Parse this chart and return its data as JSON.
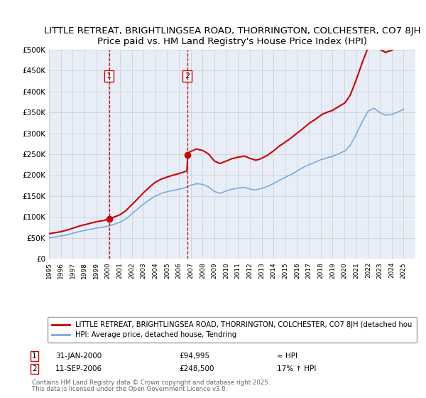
{
  "title_line1": "LITTLE RETREAT, BRIGHTLINGSEA ROAD, THORRINGTON, COLCHESTER, CO7 8JH",
  "title_line2": "Price paid vs. HM Land Registry's House Price Index (HPI)",
  "ylim": [
    0,
    500000
  ],
  "yticks": [
    0,
    50000,
    100000,
    150000,
    200000,
    250000,
    300000,
    350000,
    400000,
    450000,
    500000
  ],
  "ytick_labels": [
    "£0",
    "£50K",
    "£100K",
    "£150K",
    "£200K",
    "£250K",
    "£300K",
    "£350K",
    "£400K",
    "£450K",
    "£500K"
  ],
  "xlim_start": 1995.0,
  "xlim_end": 2026.0,
  "background_color": "#ffffff",
  "plot_bg_color": "#e8eef8",
  "grid_color": "#cccccc",
  "sale1_date": 2000.08,
  "sale1_price": 94995,
  "sale2_date": 2006.7,
  "sale2_price": 248500,
  "vline_color": "#cc0000",
  "red_line_color": "#cc0000",
  "blue_line_color": "#7aaadd",
  "legend_red_label": "LITTLE RETREAT, BRIGHTLINGSEA ROAD, THORRINGTON, COLCHESTER, CO7 8JH (detached hou",
  "legend_blue_label": "HPI: Average price, detached house, Tendring",
  "footer_text1": "Contains HM Land Registry data © Crown copyright and database right 2025.",
  "footer_text2": "This data is licensed under the Open Government Licence v3.0.",
  "title_fontsize": 9.5
}
